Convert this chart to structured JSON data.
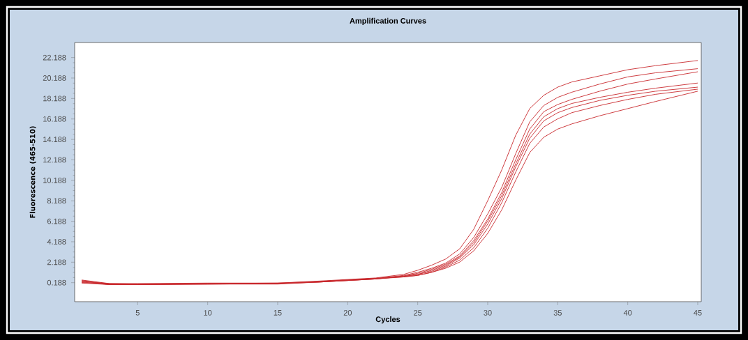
{
  "chart_data": {
    "type": "line",
    "title": "Amplification Curves",
    "xlabel": "Cycles",
    "ylabel": "Fluorescence (465-510)",
    "x": [
      1,
      3,
      5,
      10,
      15,
      18,
      20,
      22,
      24,
      25,
      26,
      27,
      28,
      29,
      30,
      31,
      32,
      33,
      34,
      35,
      36,
      38,
      40,
      42,
      45
    ],
    "series": [
      {
        "color": "#c8282d",
        "values": [
          0.45,
          0.1,
          0.1,
          0.15,
          0.15,
          0.35,
          0.5,
          0.65,
          1.0,
          1.4,
          1.9,
          2.5,
          3.5,
          5.4,
          8.2,
          11.2,
          14.6,
          17.2,
          18.5,
          19.3,
          19.8,
          20.4,
          21.0,
          21.4,
          21.9
        ]
      },
      {
        "color": "#c8282d",
        "values": [
          0.4,
          0.05,
          0.05,
          0.1,
          0.1,
          0.3,
          0.45,
          0.6,
          0.9,
          1.2,
          1.6,
          2.1,
          3.0,
          4.6,
          6.9,
          9.5,
          12.8,
          15.9,
          17.5,
          18.3,
          18.8,
          19.6,
          20.3,
          20.7,
          21.1
        ]
      },
      {
        "color": "#c8282d",
        "values": [
          0.35,
          0.0,
          0.0,
          0.05,
          0.1,
          0.25,
          0.4,
          0.55,
          0.85,
          1.1,
          1.5,
          2.0,
          2.8,
          4.3,
          6.4,
          9.0,
          12.2,
          15.2,
          16.9,
          17.6,
          18.1,
          18.9,
          19.6,
          20.1,
          20.8
        ]
      },
      {
        "color": "#c8282d",
        "values": [
          0.3,
          0.1,
          0.05,
          0.1,
          0.15,
          0.3,
          0.45,
          0.6,
          0.8,
          1.0,
          1.4,
          1.9,
          2.7,
          4.1,
          6.2,
          8.7,
          11.8,
          14.7,
          16.4,
          17.2,
          17.7,
          18.3,
          18.8,
          19.2,
          19.7
        ]
      },
      {
        "color": "#c8282d",
        "values": [
          0.25,
          0.0,
          0.05,
          0.05,
          0.05,
          0.25,
          0.4,
          0.55,
          0.8,
          1.0,
          1.3,
          1.8,
          2.6,
          3.9,
          5.9,
          8.4,
          11.5,
          14.3,
          16.0,
          16.8,
          17.3,
          18.0,
          18.5,
          18.9,
          19.3
        ]
      },
      {
        "color": "#c8282d",
        "values": [
          0.2,
          0.05,
          0.0,
          0.1,
          0.1,
          0.3,
          0.45,
          0.6,
          0.75,
          0.9,
          1.2,
          1.7,
          2.4,
          3.6,
          5.5,
          8.0,
          11.0,
          13.8,
          15.4,
          16.2,
          16.8,
          17.5,
          18.1,
          18.6,
          19.1
        ]
      },
      {
        "color": "#c8282d",
        "values": [
          0.15,
          0.0,
          0.0,
          0.05,
          0.1,
          0.25,
          0.4,
          0.55,
          0.75,
          0.9,
          1.2,
          1.6,
          2.2,
          3.3,
          5.0,
          7.3,
          10.2,
          12.9,
          14.4,
          15.2,
          15.7,
          16.5,
          17.2,
          17.9,
          18.9
        ]
      }
    ],
    "xlim": [
      0.5,
      45.25
    ],
    "ylim": [
      -1.67,
      23.66
    ],
    "xticks": [
      5,
      10,
      15,
      20,
      25,
      30,
      35,
      40,
      45
    ],
    "yticks": [
      0.188,
      2.188,
      4.188,
      6.188,
      8.188,
      10.188,
      12.188,
      14.188,
      16.188,
      18.188,
      20.188,
      22.188
    ],
    "marker": "none",
    "line_style": "solid"
  }
}
